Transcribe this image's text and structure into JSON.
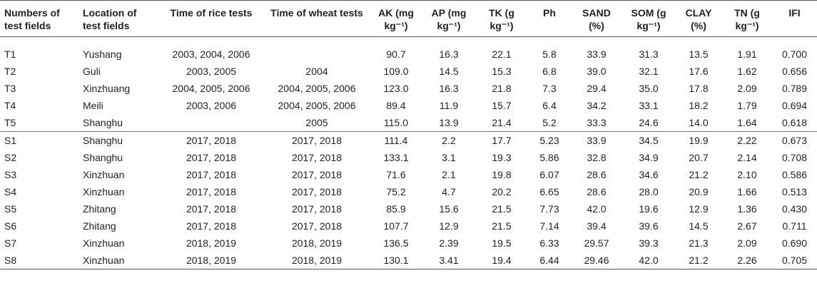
{
  "headers": [
    "Numbers of test fields",
    "Location of test fields",
    "Time of rice tests",
    "Time of wheat tests",
    "AK (mg kg⁻¹)",
    "AP (mg kg⁻¹)",
    "TK (g kg⁻¹)",
    "Ph",
    "SAND (%)",
    "SOM (g kg⁻¹)",
    "CLAY (%)",
    "TN (g kg⁻¹)",
    "IFI"
  ],
  "rows": [
    [
      "T1",
      "Yushang",
      "2003, 2004, 2006",
      "",
      "90.7",
      "16.3",
      "22.1",
      "5.8",
      "33.9",
      "31.3",
      "13.5",
      "1.91",
      "0.700"
    ],
    [
      "T2",
      "Guli",
      "2003, 2005",
      "2004",
      "109.0",
      "14.5",
      "15.3",
      "6.8",
      "39.0",
      "32.1",
      "17.6",
      "1.62",
      "0.656"
    ],
    [
      "T3",
      "Xinzhuang",
      "2004, 2005, 2006",
      "2004, 2005, 2006",
      "123.0",
      "16.3",
      "21.8",
      "7.3",
      "29.4",
      "35.0",
      "17.8",
      "2.09",
      "0.789"
    ],
    [
      "T4",
      "Meili",
      "2003, 2006",
      "2004, 2005, 2006",
      "89.4",
      "11.9",
      "15.7",
      "6.4",
      "34.2",
      "33.1",
      "18.2",
      "1.79",
      "0.694"
    ],
    [
      "T5",
      "Shanghu",
      "",
      "2005",
      "115.0",
      "13.9",
      "21.4",
      "5.2",
      "33.3",
      "24.6",
      "14.0",
      "1.64",
      "0.618"
    ],
    [
      "S1",
      "Shanghu",
      "2017, 2018",
      "2017, 2018",
      "111.4",
      "2.2",
      "17.7",
      "5.23",
      "33.9",
      "34.5",
      "19.9",
      "2.22",
      "0.673"
    ],
    [
      "S2",
      "Shanghu",
      "2017, 2018",
      "2017, 2018",
      "133.1",
      "3.1",
      "19.3",
      "5.86",
      "32.8",
      "34.9",
      "20.7",
      "2.14",
      "0.708"
    ],
    [
      "S3",
      "Xinzhuan",
      "2017, 2018",
      "2017, 2018",
      "71.6",
      "2.1",
      "19.8",
      "6.07",
      "28.6",
      "34.6",
      "21.2",
      "2.10",
      "0.586"
    ],
    [
      "S4",
      "Xinzhuan",
      "2017, 2018",
      "2017, 2018",
      "75.2",
      "4.7",
      "20.2",
      "6.65",
      "28.6",
      "28.0",
      "20.9",
      "1.66",
      "0.513"
    ],
    [
      "S5",
      "Zhitang",
      "2017, 2018",
      "2017, 2018",
      "85.9",
      "15.6",
      "21.5",
      "7.73",
      "42.0",
      "19.6",
      "12.9",
      "1.36",
      "0.430"
    ],
    [
      "S6",
      "Zhitang",
      "2017, 2018",
      "2017, 2018",
      "107.7",
      "12.9",
      "21.5",
      "7.14",
      "39.4",
      "39.6",
      "14.5",
      "2.67",
      "0.711"
    ],
    [
      "S7",
      "Xinzhuan",
      "2018, 2019",
      "2018, 2019",
      "136.5",
      "2.39",
      "19.5",
      "6.33",
      "29.57",
      "39.3",
      "21.3",
      "2.09",
      "0.690"
    ],
    [
      "S8",
      "Xinzhuan",
      "2018, 2019",
      "2018, 2019",
      "130.1",
      "3.41",
      "19.4",
      "6.44",
      "29.46",
      "42.0",
      "21.2",
      "2.26",
      "0.705"
    ]
  ]
}
